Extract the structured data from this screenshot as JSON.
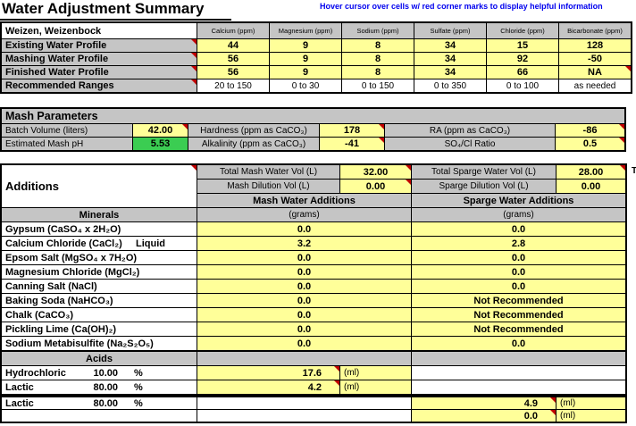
{
  "title": "Water Adjustment Summary",
  "hint": "Hover cursor over cells w/ red corner marks to display helpful information",
  "edge_text": "T",
  "colors": {
    "input_yellow": "#FFFF99",
    "result_green": "#3BCD52",
    "header_gray": "#C5C5C5",
    "comment_mark_red": "#C00000",
    "hint_blue": "#0000EE"
  },
  "profiles": {
    "style_name": "Weizen, Weizenbock",
    "columns": [
      "Calcium (ppm)",
      "Magnesium (ppm)",
      "Sodium (ppm)",
      "Sulfate (ppm)",
      "Chloride (ppm)",
      "Bicarbonate (ppm)"
    ],
    "rows": [
      {
        "label": "Existing Water Profile",
        "values": [
          "44",
          "9",
          "8",
          "34",
          "15",
          "128"
        ]
      },
      {
        "label": "Mashing Water Profile",
        "values": [
          "56",
          "9",
          "8",
          "34",
          "92",
          "-50"
        ]
      },
      {
        "label": "Finished Water Profile",
        "values": [
          "56",
          "9",
          "8",
          "34",
          "66",
          "NA"
        ]
      },
      {
        "label": "Recommended Ranges",
        "values": [
          "20 to 150",
          "0 to 30",
          "0 to 150",
          "0 to 350",
          "0 to 100",
          "as needed"
        ]
      }
    ]
  },
  "mash_parameters": {
    "header": "Mash Parameters",
    "batch_volume_label": "Batch Volume (liters)",
    "batch_volume_value": "42.00",
    "hardness_label": "Hardness (ppm as CaCO₃)",
    "hardness_value": "178",
    "ra_label": "RA (ppm as CaCO₃)",
    "ra_value": "-86",
    "mash_ph_label": "Estimated Mash pH",
    "mash_ph_value": "5.53",
    "alkalinity_label": "Alkalinity (ppm as CaCO₃)",
    "alkalinity_value": "-41",
    "so4_cl_label": "SO₄/Cl Ratio",
    "so4_cl_value": "0.5"
  },
  "additions": {
    "header": "Additions",
    "total_mash_label": "Total Mash Water Vol (L)",
    "total_mash_value": "32.00",
    "mash_dilution_label": "Mash Dilution Vol (L)",
    "mash_dilution_value": "0.00",
    "total_sparge_label": "Total Sparge Water Vol (L)",
    "total_sparge_value": "28.00",
    "sparge_dilution_label": "Sparge Dilution Vol (L)",
    "sparge_dilution_value": "0.00",
    "mash_col_header": "Mash Water Additions",
    "sparge_col_header": "Sparge Water Additions",
    "minerals_header": "Minerals",
    "grams_label": "(grams)",
    "minerals": [
      {
        "label": "Gypsum (CaSO₄ x 2H₂O)",
        "note": "",
        "mash": "0.0",
        "sparge": "0.0"
      },
      {
        "label": "Calcium Chloride (CaCl₂)",
        "note": "Liquid",
        "mash": "3.2",
        "sparge": "2.8"
      },
      {
        "label": "Epsom Salt (MgSO₄ x 7H₂O)",
        "note": "",
        "mash": "0.0",
        "sparge": "0.0"
      },
      {
        "label": "Magnesium Chloride (MgCl₂)",
        "note": "",
        "mash": "0.0",
        "sparge": "0.0"
      },
      {
        "label": "Canning Salt (NaCl)",
        "note": "",
        "mash": "0.0",
        "sparge": "0.0"
      },
      {
        "label": "Baking Soda (NaHCO₃)",
        "note": "",
        "mash": "0.0",
        "sparge": "Not Recommended"
      },
      {
        "label": "Chalk (CaCO₃)",
        "note": "",
        "mash": "0.0",
        "sparge": "Not Recommended"
      },
      {
        "label": "Pickling Lime (Ca(OH)₂)",
        "note": "",
        "mash": "0.0",
        "sparge": "Not Recommended"
      },
      {
        "label": "Sodium Metabisulfite (Na₂S₂O₅)",
        "note": "",
        "mash": "0.0",
        "sparge": "0.0"
      }
    ]
  },
  "acids": {
    "header": "Acids",
    "ml_label": "(ml)",
    "rows": [
      {
        "name": "Hydrochloric",
        "strength": "10.00",
        "pct": "%",
        "mash": "17.6",
        "sparge": ""
      },
      {
        "name": "Lactic",
        "strength": "80.00",
        "pct": "%",
        "mash": "4.2",
        "sparge": ""
      },
      {
        "name": "Lactic",
        "strength": "80.00",
        "pct": "%",
        "mash": "",
        "sparge": "4.9"
      },
      {
        "name": "",
        "strength": "",
        "pct": "",
        "mash": "",
        "sparge": "0.0"
      }
    ]
  }
}
